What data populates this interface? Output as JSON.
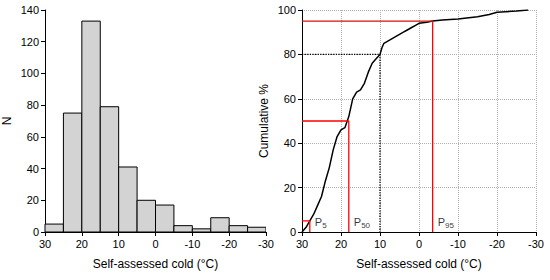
{
  "chart_data": [
    {
      "type": "histogram",
      "xlabel": "Self-assessed cold (°C)",
      "ylabel": "N",
      "bins": [
        30,
        25,
        20,
        15,
        10,
        5,
        0,
        -5,
        -10,
        -15,
        -20,
        -25,
        -30
      ],
      "values": [
        5,
        75,
        133,
        79,
        41,
        20,
        17,
        4,
        2,
        9,
        4,
        3
      ],
      "color": "#d3d3d3",
      "xlim": [
        30,
        -30
      ],
      "xticks": [
        30,
        20,
        10,
        0,
        -10,
        -20,
        -30
      ],
      "ylim": [
        0,
        140
      ],
      "yticks": [
        0,
        20,
        40,
        60,
        80,
        100,
        120,
        140
      ],
      "grid": false
    },
    {
      "type": "line",
      "xlabel": "Self-assessed cold (°C)",
      "ylabel": "Cumulative %",
      "x": [
        30,
        29,
        28,
        27,
        26,
        25,
        24,
        23,
        22,
        21,
        20,
        19,
        18,
        17,
        16,
        15,
        14,
        13,
        12,
        11,
        10,
        9.5,
        9,
        8,
        7,
        6,
        5,
        4,
        3,
        2,
        1,
        0,
        -2,
        -3.5,
        -6,
        -10,
        -15,
        -18,
        -20,
        -25,
        -28
      ],
      "values": [
        0,
        2,
        5,
        8,
        12,
        16,
        23,
        29,
        37,
        43,
        46,
        47,
        52,
        60,
        63,
        64,
        67,
        72,
        76,
        78,
        80,
        83,
        85,
        86,
        87,
        88,
        89,
        90,
        91,
        92,
        93,
        94,
        94.5,
        95,
        95.5,
        96,
        97,
        98,
        99,
        99.5,
        100
      ],
      "color": "#000000",
      "xlim": [
        30,
        -30
      ],
      "xticks": [
        30,
        20,
        10,
        0,
        -10,
        -20,
        -30
      ],
      "ylim": [
        0,
        100
      ],
      "yticks": [
        0,
        20,
        40,
        60,
        80,
        100
      ],
      "grid": true,
      "percentiles": [
        {
          "label": "P",
          "subscript": "5",
          "x": 28,
          "y": 5,
          "color": "#ff0000",
          "line_style": "solid"
        },
        {
          "label": "P",
          "subscript": "50",
          "x": 18,
          "y": 50,
          "color": "#ff0000",
          "line_style": "solid"
        },
        {
          "label": "P",
          "subscript": "95",
          "x": -3.5,
          "y": 95,
          "color": "#ff0000",
          "line_style": "solid"
        }
      ],
      "reference": {
        "x": 10,
        "y": 80,
        "color": "#000000",
        "line_style": "dotted"
      }
    }
  ]
}
